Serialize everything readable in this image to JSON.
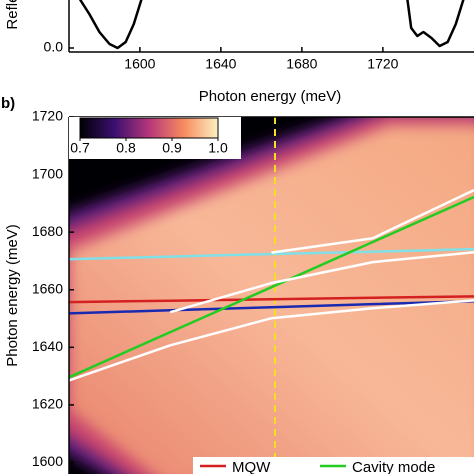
{
  "chart_data": [
    {
      "type": "line",
      "ylabel": "Reflectance",
      "xlabel": "Photon energy (meV)",
      "x": [
        1570,
        1575,
        1580,
        1585,
        1589,
        1593,
        1597,
        1601,
        1660,
        1732,
        1734,
        1737,
        1740,
        1744,
        1748,
        1752,
        1756,
        1760
      ],
      "series": [
        {
          "color": "#000000",
          "values": [
            0.25,
            0.17,
            0.08,
            0.02,
            0.0,
            0.03,
            0.12,
            0.25,
            null,
            0.25,
            0.1,
            0.06,
            0.08,
            0.05,
            0.01,
            0.03,
            0.12,
            0.25
          ]
        }
      ],
      "xlim": [
        1565,
        1765
      ],
      "ylim": [
        -0.02,
        1.0
      ],
      "xticks": [
        1600,
        1640,
        1680,
        1720
      ],
      "yticks": [
        {
          "value": 0,
          "label": "0.0"
        }
      ]
    },
    {
      "type": "line",
      "panel_label": "b)",
      "ylabel": "Photon energy (meV)",
      "categories": [
        null,
        null,
        null,
        null,
        null
      ],
      "series": [
        {
          "color": "#7fe0e8",
          "values": [
            1670.6,
            1671.5,
            1672.4,
            1673.2,
            1674.1
          ]
        },
        {
          "name": "MQW",
          "color": "#d42020",
          "values": [
            1655.7,
            1656.2,
            1656.7,
            1657.2,
            1657.7
          ]
        },
        {
          "color": "#1a2ab0",
          "values": [
            1651.8,
            1652.9,
            1653.9,
            1655.0,
            1656.0
          ]
        },
        {
          "name": "Cavity mode",
          "color": "#22cc22",
          "values": [
            1629.6,
            1645.3,
            1660.9,
            1676.6,
            1692.2
          ]
        },
        {
          "color": "#ffffff",
          "values": [
            1628.5,
            1640.7,
            1650.1,
            1653.6,
            1656.3
          ]
        },
        {
          "color": "#ffffff",
          "values": [
            null,
            1652.2,
            1662.3,
            1669.6,
            1673.0
          ]
        },
        {
          "color": "#ffffff",
          "values": [
            null,
            null,
            1672.9,
            1677.9,
            1694.6
          ]
        }
      ],
      "ylim": [
        1596,
        1720
      ],
      "yticks": [
        1600,
        1620,
        1640,
        1660,
        1680,
        1700,
        1720
      ],
      "clim": [
        0.7,
        1.0
      ],
      "cticks": [
        0.7,
        0.8,
        0.9,
        {
          "value": 1,
          "label": "1.0"
        }
      ]
    }
  ]
}
